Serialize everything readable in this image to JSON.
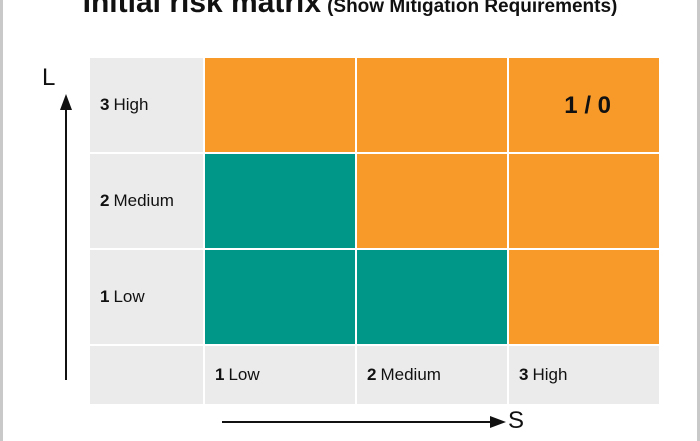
{
  "title": {
    "main": "Initial risk matrix",
    "sub": "(Show Mitigation Requirements)"
  },
  "axes": {
    "likelihood_label": "L",
    "severity_label": "S"
  },
  "rows": [
    {
      "num": "3",
      "label": "High"
    },
    {
      "num": "2",
      "label": "Medium"
    },
    {
      "num": "1",
      "label": "Low"
    }
  ],
  "columns": [
    {
      "num": "1",
      "label": "Low"
    },
    {
      "num": "2",
      "label": "Medium"
    },
    {
      "num": "3",
      "label": "High"
    }
  ],
  "cells": {
    "high_high_count": "1 / 0"
  },
  "colors": {
    "orange": "#f89a2a",
    "green": "#009688",
    "label_bg": "#ebebeb"
  }
}
